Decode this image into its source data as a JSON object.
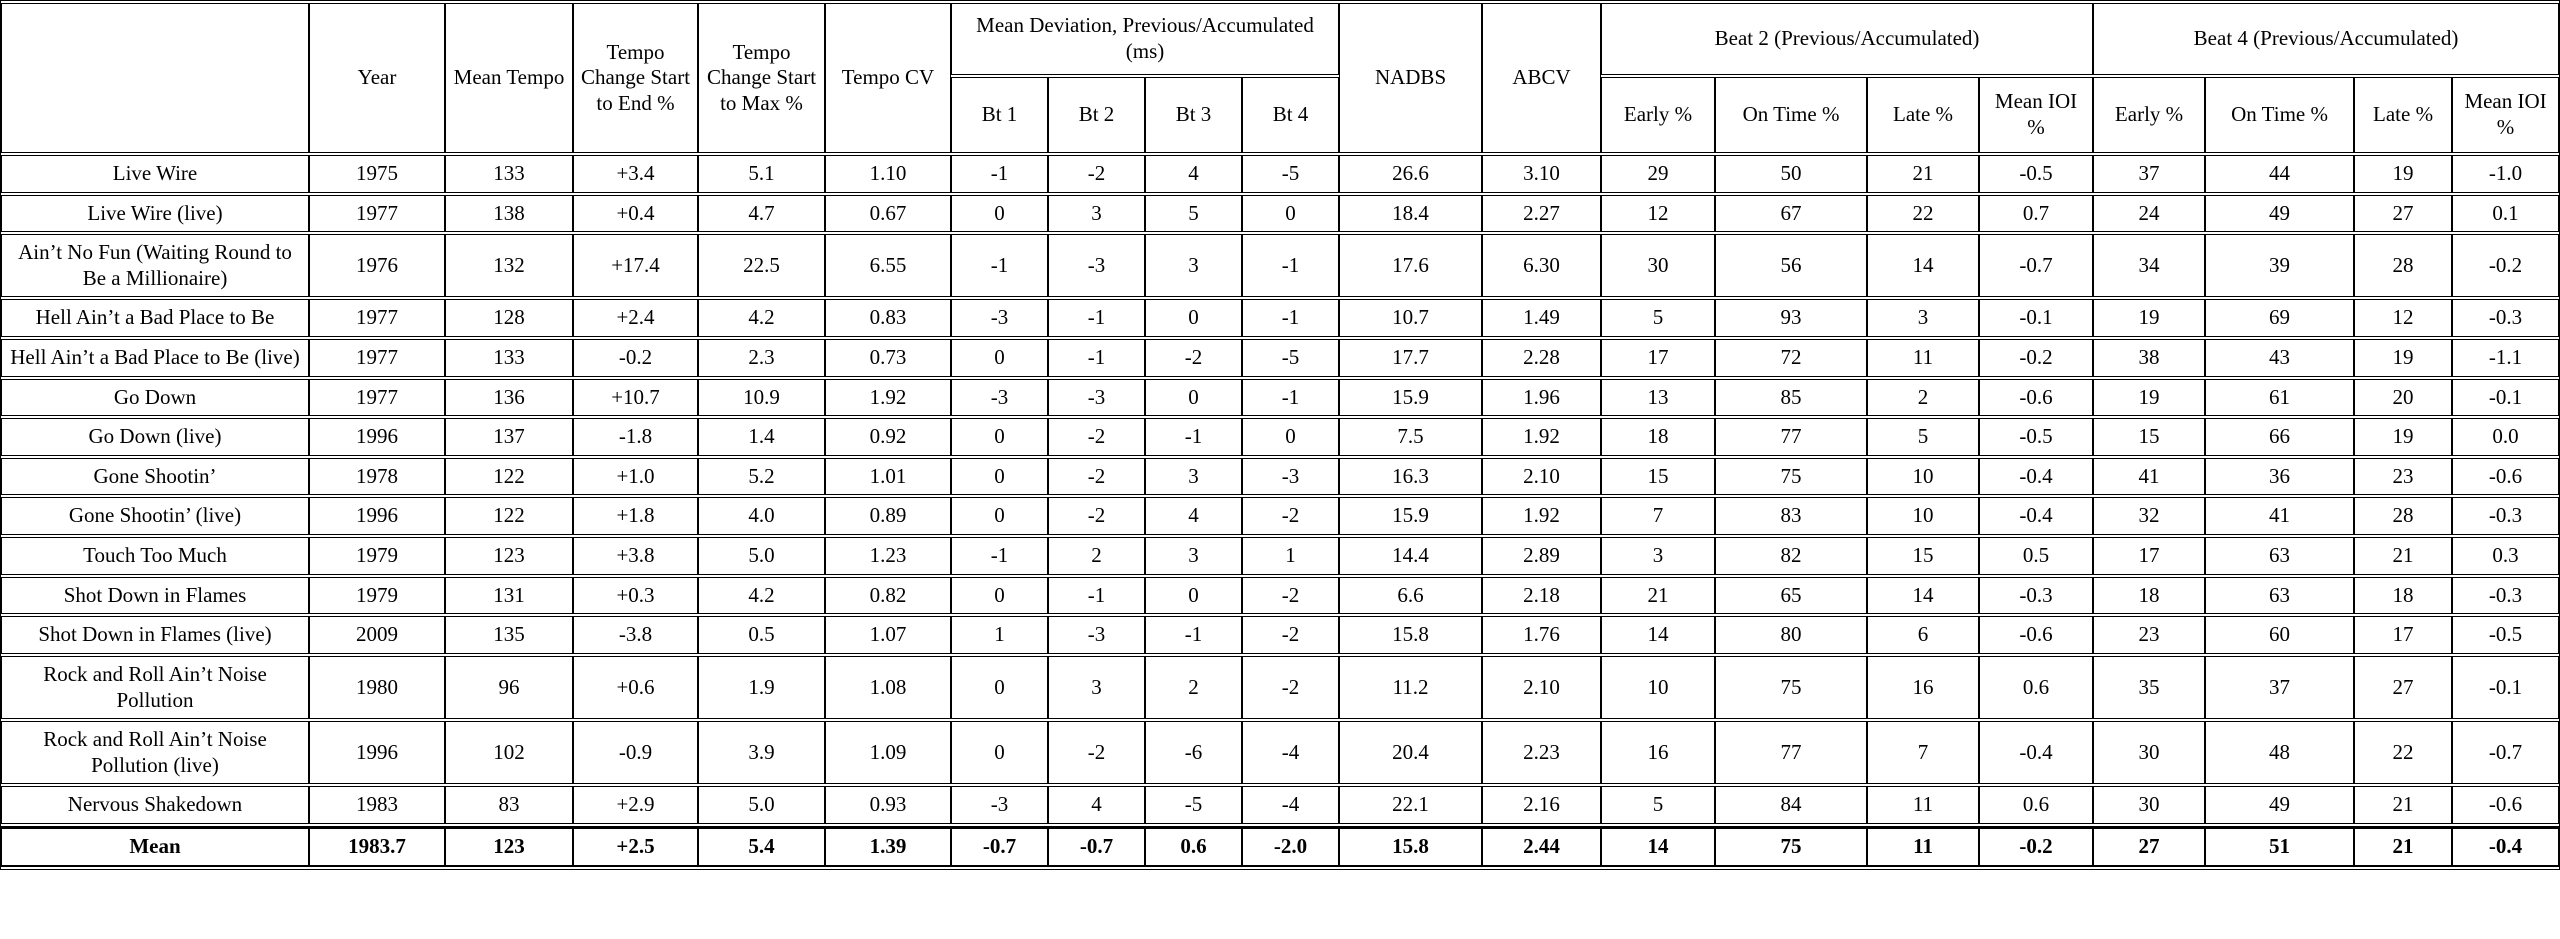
{
  "table": {
    "header": {
      "song_header": "",
      "year": "Year",
      "mean_tempo": "Mean Tempo",
      "tempo_change_end": "Tempo Change Start to End %",
      "tempo_change_max": "Tempo Change Start to Max %",
      "tempo_cv": "Tempo CV",
      "mean_deviation_group": "Mean Deviation, Previous/Accumulated (ms)",
      "beat_cols": [
        "Bt 1",
        "Bt 2",
        "Bt 3",
        "Bt 4"
      ],
      "nadbs": "NADBS",
      "abcv": "ABCV",
      "beat2_group": "Beat 2 (Previous/Accumulated)",
      "beat4_group": "Beat 4 (Previous/Accumulated)",
      "beat_sub": [
        "Early %",
        "On Time %",
        "Late %",
        "Mean IOI %"
      ]
    },
    "rows": [
      {
        "song": "Live Wire",
        "bold": false,
        "values": [
          "1975",
          "133",
          "+3.4",
          "5.1",
          "1.10",
          "-1",
          "-2",
          "4",
          "-5",
          "26.6",
          "3.10",
          "29",
          "50",
          "21",
          "-0.5",
          "37",
          "44",
          "19",
          "-1.0"
        ]
      },
      {
        "song": "Live Wire (live)",
        "bold": false,
        "values": [
          "1977",
          "138",
          "+0.4",
          "4.7",
          "0.67",
          "0",
          "3",
          "5",
          "0",
          "18.4",
          "2.27",
          "12",
          "67",
          "22",
          "0.7",
          "24",
          "49",
          "27",
          "0.1"
        ]
      },
      {
        "song": "Ain’t No Fun (Waiting Round to Be a Millionaire)",
        "bold": false,
        "values": [
          "1976",
          "132",
          "+17.4",
          "22.5",
          "6.55",
          "-1",
          "-3",
          "3",
          "-1",
          "17.6",
          "6.30",
          "30",
          "56",
          "14",
          "-0.7",
          "34",
          "39",
          "28",
          "-0.2"
        ]
      },
      {
        "song": "Hell Ain’t a Bad Place to Be",
        "bold": false,
        "values": [
          "1977",
          "128",
          "+2.4",
          "4.2",
          "0.83",
          "-3",
          "-1",
          "0",
          "-1",
          "10.7",
          "1.49",
          "5",
          "93",
          "3",
          "-0.1",
          "19",
          "69",
          "12",
          "-0.3"
        ]
      },
      {
        "song": "Hell Ain’t a Bad Place to Be (live)",
        "bold": false,
        "values": [
          "1977",
          "133",
          "-0.2",
          "2.3",
          "0.73",
          "0",
          "-1",
          "-2",
          "-5",
          "17.7",
          "2.28",
          "17",
          "72",
          "11",
          "-0.2",
          "38",
          "43",
          "19",
          "-1.1"
        ]
      },
      {
        "song": "Go Down",
        "bold": false,
        "values": [
          "1977",
          "136",
          "+10.7",
          "10.9",
          "1.92",
          "-3",
          "-3",
          "0",
          "-1",
          "15.9",
          "1.96",
          "13",
          "85",
          "2",
          "-0.6",
          "19",
          "61",
          "20",
          "-0.1"
        ]
      },
      {
        "song": "Go Down (live)",
        "bold": false,
        "values": [
          "1996",
          "137",
          "-1.8",
          "1.4",
          "0.92",
          "0",
          "-2",
          "-1",
          "0",
          "7.5",
          "1.92",
          "18",
          "77",
          "5",
          "-0.5",
          "15",
          "66",
          "19",
          "0.0"
        ]
      },
      {
        "song": "Gone Shootin’",
        "bold": false,
        "values": [
          "1978",
          "122",
          "+1.0",
          "5.2",
          "1.01",
          "0",
          "-2",
          "3",
          "-3",
          "16.3",
          "2.10",
          "15",
          "75",
          "10",
          "-0.4",
          "41",
          "36",
          "23",
          "-0.6"
        ]
      },
      {
        "song": "Gone Shootin’ (live)",
        "bold": false,
        "values": [
          "1996",
          "122",
          "+1.8",
          "4.0",
          "0.89",
          "0",
          "-2",
          "4",
          "-2",
          "15.9",
          "1.92",
          "7",
          "83",
          "10",
          "-0.4",
          "32",
          "41",
          "28",
          "-0.3"
        ]
      },
      {
        "song": "Touch Too Much",
        "bold": false,
        "values": [
          "1979",
          "123",
          "+3.8",
          "5.0",
          "1.23",
          "-1",
          "2",
          "3",
          "1",
          "14.4",
          "2.89",
          "3",
          "82",
          "15",
          "0.5",
          "17",
          "63",
          "21",
          "0.3"
        ]
      },
      {
        "song": "Shot Down in Flames",
        "bold": false,
        "values": [
          "1979",
          "131",
          "+0.3",
          "4.2",
          "0.82",
          "0",
          "-1",
          "0",
          "-2",
          "6.6",
          "2.18",
          "21",
          "65",
          "14",
          "-0.3",
          "18",
          "63",
          "18",
          "-0.3"
        ]
      },
      {
        "song": "Shot Down in Flames (live)",
        "bold": false,
        "values": [
          "2009",
          "135",
          "-3.8",
          "0.5",
          "1.07",
          "1",
          "-3",
          "-1",
          "-2",
          "15.8",
          "1.76",
          "14",
          "80",
          "6",
          "-0.6",
          "23",
          "60",
          "17",
          "-0.5"
        ]
      },
      {
        "song": "Rock and Roll Ain’t Noise Pollution",
        "bold": false,
        "values": [
          "1980",
          "96",
          "+0.6",
          "1.9",
          "1.08",
          "0",
          "3",
          "2",
          "-2",
          "11.2",
          "2.10",
          "10",
          "75",
          "16",
          "0.6",
          "35",
          "37",
          "27",
          "-0.1"
        ]
      },
      {
        "song": "Rock and Roll Ain’t Noise Pollution (live)",
        "bold": false,
        "values": [
          "1996",
          "102",
          "-0.9",
          "3.9",
          "1.09",
          "0",
          "-2",
          "-6",
          "-4",
          "20.4",
          "2.23",
          "16",
          "77",
          "7",
          "-0.4",
          "30",
          "48",
          "22",
          "-0.7"
        ]
      },
      {
        "song": "Nervous Shakedown",
        "bold": false,
        "values": [
          "1983",
          "83",
          "+2.9",
          "5.0",
          "0.93",
          "-3",
          "4",
          "-5",
          "-4",
          "22.1",
          "2.16",
          "5",
          "84",
          "11",
          "0.6",
          "30",
          "49",
          "21",
          "-0.6"
        ]
      },
      {
        "song": "Mean",
        "bold": true,
        "values": [
          "1983.7",
          "123",
          "+2.5",
          "5.4",
          "1.39",
          "-0.7",
          "-0.7",
          "0.6",
          "-2.0",
          "15.8",
          "2.44",
          "14",
          "75",
          "11",
          "-0.2",
          "27",
          "51",
          "21",
          "-0.4"
        ]
      }
    ]
  }
}
